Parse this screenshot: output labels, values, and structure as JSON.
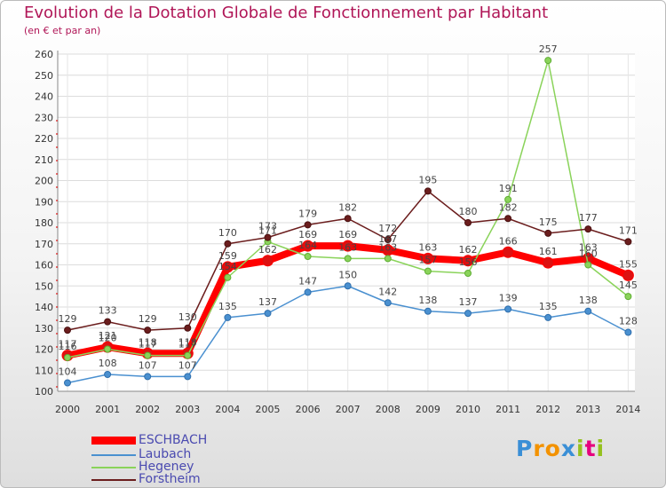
{
  "chart_data": {
    "type": "line",
    "title": "Evolution de la Dotation Globale de Fonctionnement par Habitant",
    "subtitle": "(en € et par an)",
    "categories": [
      "2000",
      "2001",
      "2002",
      "2003",
      "2004",
      "2005",
      "2006",
      "2007",
      "2008",
      "2009",
      "2010",
      "2011",
      "2012",
      "2013",
      "2014"
    ],
    "ylim": [
      100,
      260
    ],
    "yticks": [
      100,
      110,
      120,
      130,
      140,
      150,
      160,
      170,
      180,
      190,
      200,
      210,
      220,
      230,
      240,
      250,
      260
    ],
    "grid": true,
    "series": [
      {
        "name": "ESCHBACH",
        "color": "#ff0000",
        "values": [
          117,
          121,
          118,
          118,
          159,
          162,
          169,
          169,
          167,
          163,
          162,
          166,
          161,
          163,
          155
        ]
      },
      {
        "name": "Laubach",
        "color": "#4a90d0",
        "values": [
          104,
          108,
          107,
          107,
          135,
          137,
          147,
          150,
          142,
          138,
          137,
          139,
          135,
          138,
          128
        ]
      },
      {
        "name": "Hegeney",
        "color": "#8ad35a",
        "values": [
          116,
          120,
          117,
          117,
          154,
          171,
          164,
          163,
          163,
          157,
          156,
          191,
          257,
          160,
          145
        ]
      },
      {
        "name": "Forstheim",
        "color": "#6b1d1d",
        "values": [
          129,
          133,
          129,
          130,
          170,
          173,
          179,
          182,
          172,
          195,
          180,
          182,
          175,
          177,
          171
        ]
      }
    ]
  },
  "logo": {
    "letters": [
      "P",
      "r",
      "o",
      "x",
      "i",
      "t",
      "i"
    ],
    "colors": [
      "#3a8fd6",
      "#f39200",
      "#f39200",
      "#3a8fd6",
      "#95c11f",
      "#e6007e",
      "#95c11f"
    ]
  }
}
